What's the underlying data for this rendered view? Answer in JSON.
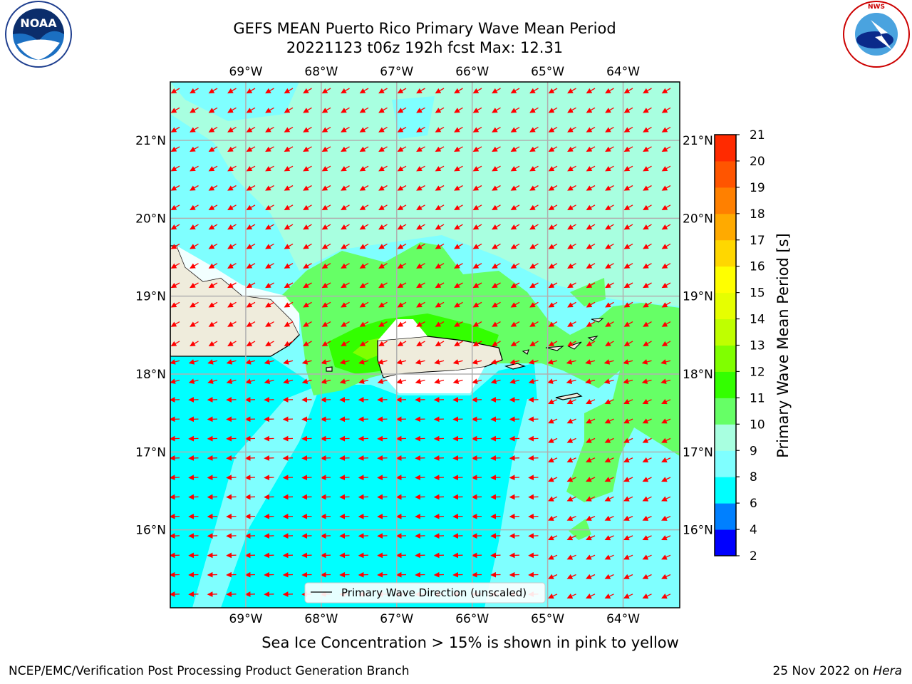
{
  "header": {
    "title_line1": "GEFS MEAN Puerto Rico Primary Wave Mean Period",
    "title_line2": "20221123 t06z 192h fcst   Max: 12.31"
  },
  "logos": {
    "noaa": {
      "text": "NOAA",
      "ring_text": "NATIONAL OCEANIC AND ATMOSPHERIC ADMINISTRATION · U.S. DEPARTMENT OF COMMERCE",
      "icon": "noaa-logo-icon"
    },
    "nws": {
      "ring_text": "NATIONAL WEATHER SERVICE",
      "icon": "nws-logo-icon"
    }
  },
  "map": {
    "lon_labels": [
      "69°W",
      "68°W",
      "67°W",
      "66°W",
      "65°W",
      "64°W"
    ],
    "lat_labels": [
      "21°N",
      "20°N",
      "19°N",
      "18°N",
      "17°N",
      "16°N"
    ],
    "lon_values": [
      -69,
      -68,
      -67,
      -66,
      -65,
      -64
    ],
    "lat_values": [
      21,
      20,
      19,
      18,
      17,
      16
    ],
    "extent": {
      "lon_min": -70,
      "lon_max": -63.25,
      "lat_min": 15,
      "lat_max": 21.75
    },
    "legend_label": "Primary Wave Direction (unscaled)",
    "arrow_color": "#ff0000",
    "land_color": "#efecdc"
  },
  "colorbar": {
    "label": "Primary Wave Mean Period [s]",
    "ticks": [
      "2",
      "4",
      "6",
      "8",
      "9",
      "10",
      "11",
      "12",
      "13",
      "14",
      "15",
      "16",
      "17",
      "18",
      "19",
      "20",
      "21"
    ],
    "colors": [
      "#0000ff",
      "#0080ff",
      "#00ffff",
      "#7fffff",
      "#a8ffe0",
      "#66ff66",
      "#33ff00",
      "#80ff00",
      "#bfff00",
      "#e6ff00",
      "#ffff00",
      "#ffd700",
      "#ffaa00",
      "#ff8000",
      "#ff5500",
      "#ff2a00"
    ]
  },
  "footer": {
    "note": "Sea Ice Concentration > 15% is shown in pink to yellow",
    "left": "NCEP/EMC/Verification Post Processing Product Generation Branch",
    "right_date": "25 Nov 2022 on ",
    "right_host": "Hera"
  }
}
